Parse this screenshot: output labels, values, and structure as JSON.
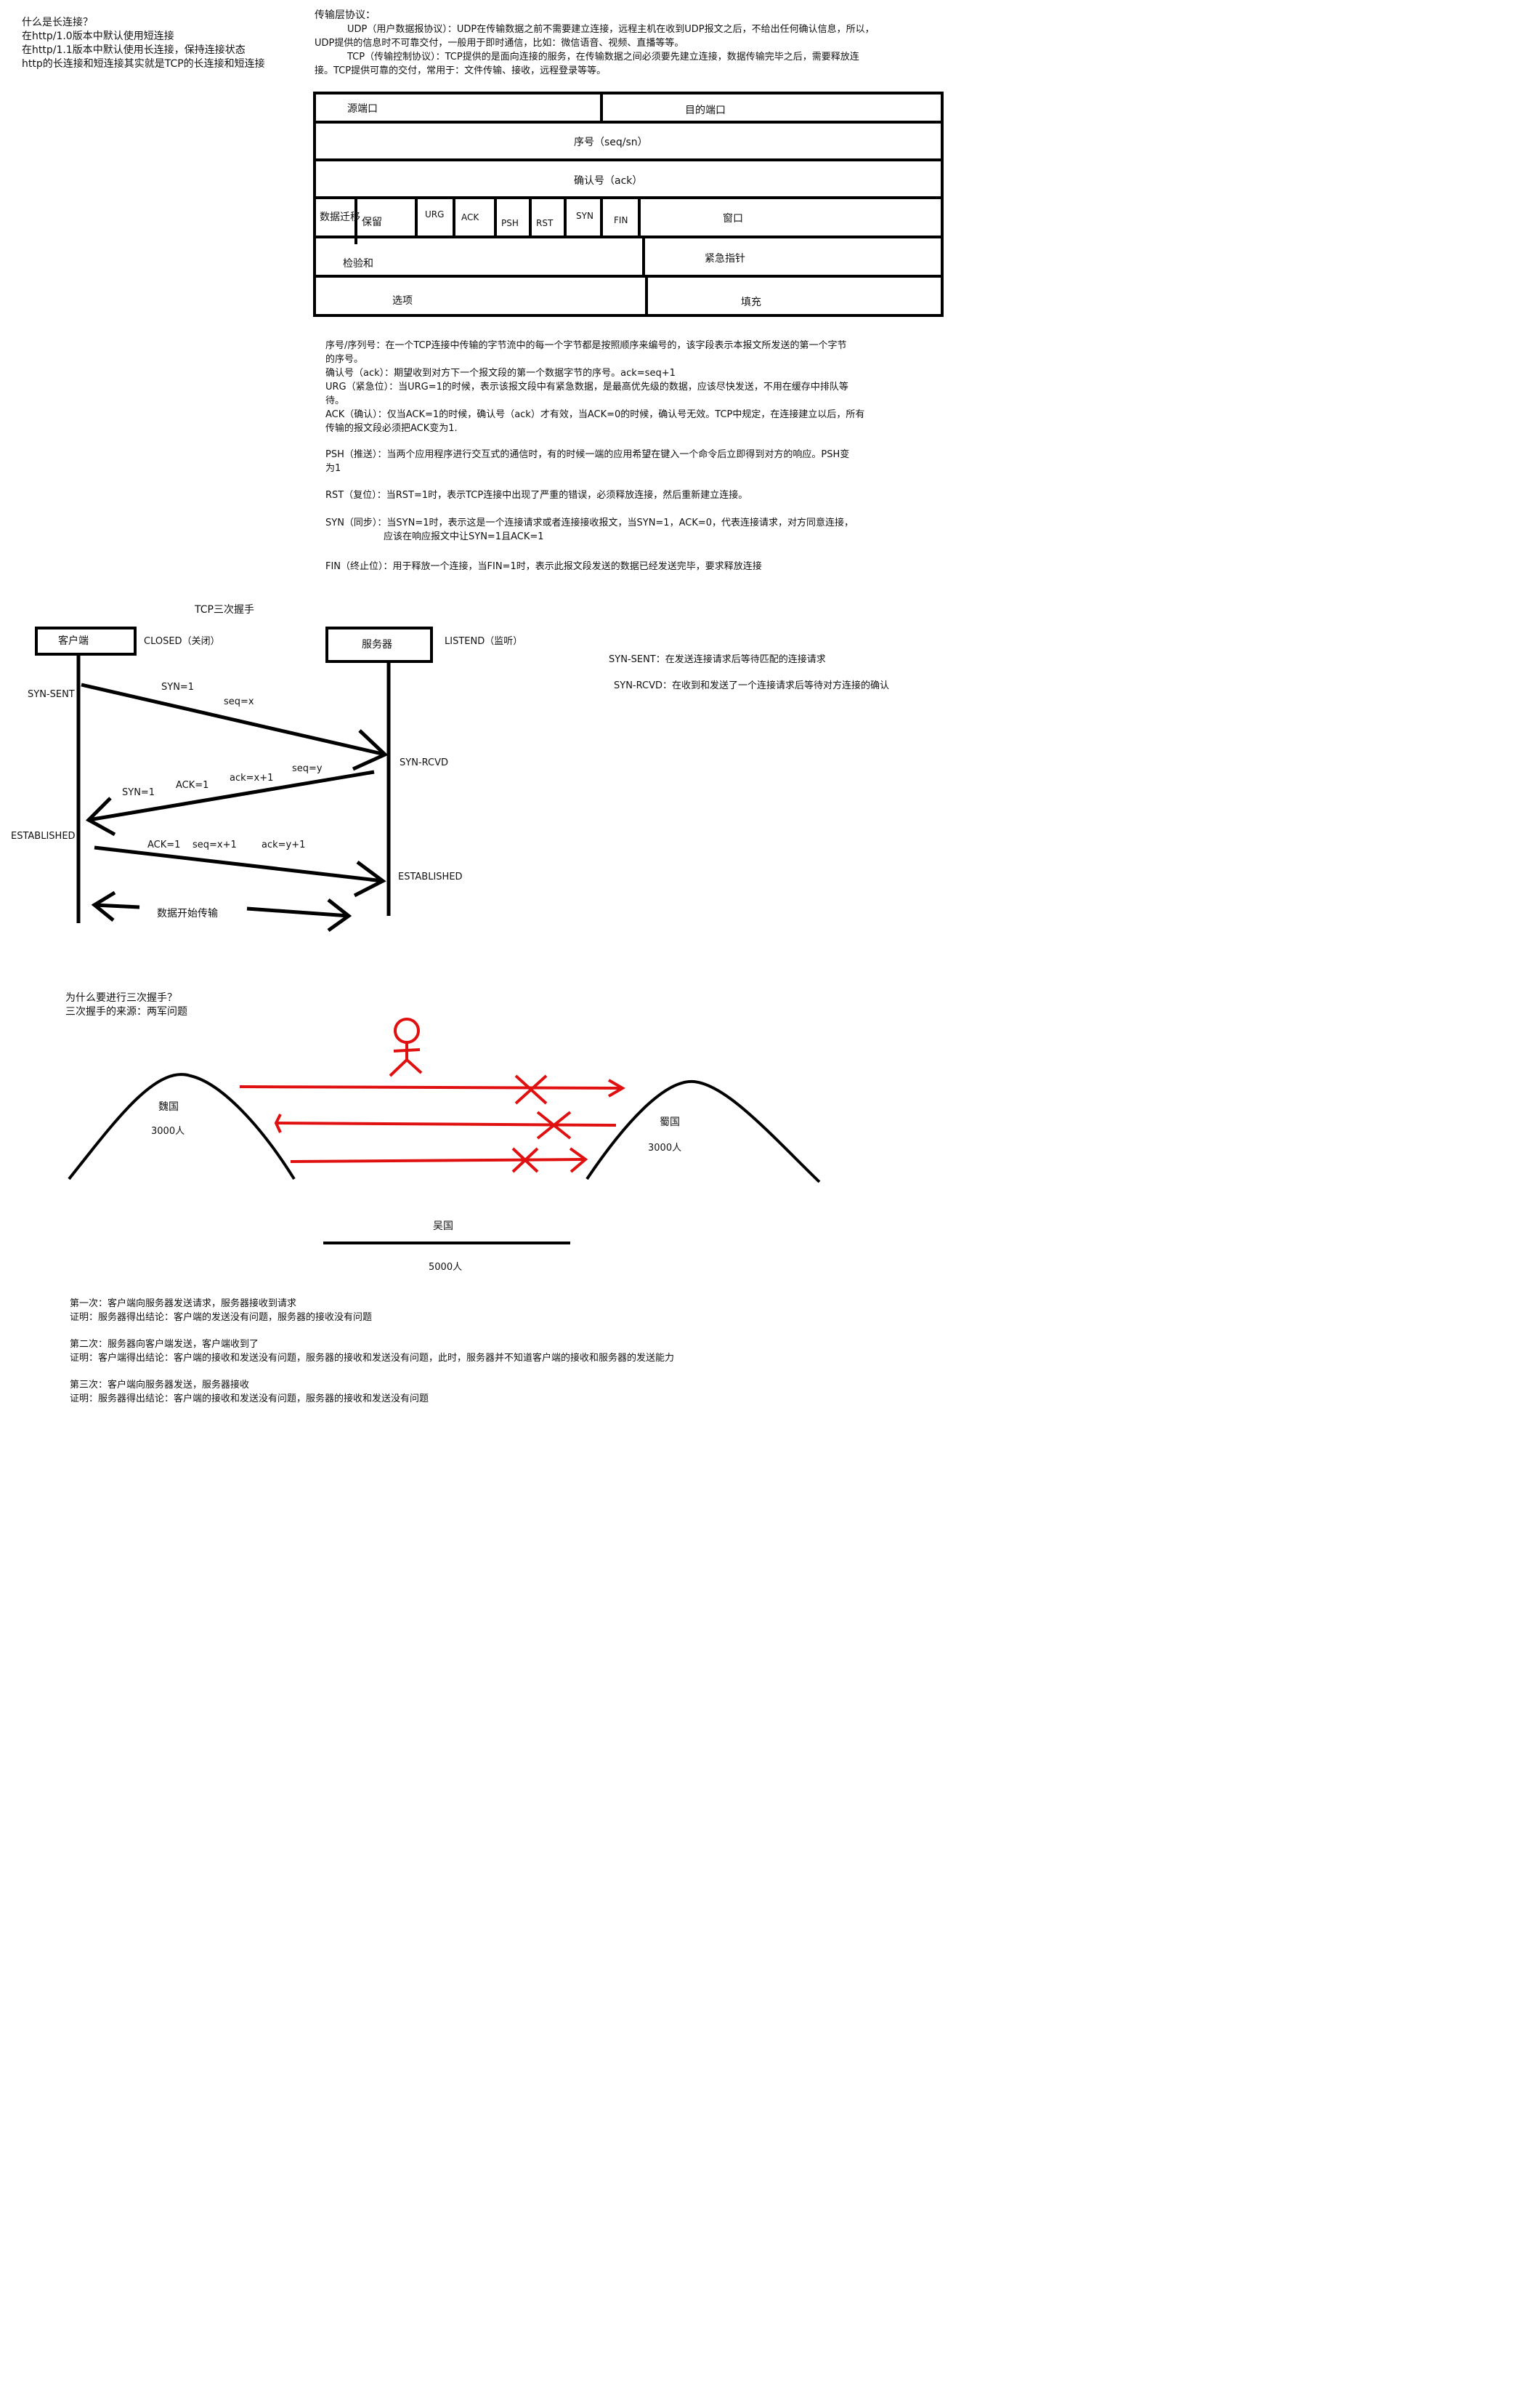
{
  "long_conn": {
    "q": "什么是长连接？",
    "l1": "在http/1.0版本中默认使用短连接",
    "l2": "在http/1.1版本中默认使用长连接，保持连接状态",
    "l3": "http的长连接和短连接其实就是TCP的长连接和短连接"
  },
  "transport": {
    "title": "传输层协议：",
    "udp1": "UDP（用户数据报协议）：UDP在传输数据之前不需要建立连接，远程主机在收到UDP报文之后，不给出任何确认信息，所以，",
    "udp2": "UDP提供的信息时不可靠交付，一般用于即时通信，比如：微信语音、视频、直播等等。",
    "tcp1": "TCP（传输控制协议）：TCP提供的是面向连接的服务，在传输数据之间必须要先建立连接，数据传输完毕之后，需要释放连",
    "tcp2": "接。TCP提供可靠的交付，常用于：文件传输、接收，远程登录等等。"
  },
  "header": {
    "src_port": "源端口",
    "dst_port": "目的端口",
    "seq": "序号（seq/sn）",
    "ack": "确认号（ack）",
    "offset": "数据迁移",
    "reserved": "保留",
    "urg": "URG",
    "ackf": "ACK",
    "psh": "PSH",
    "rst": "RST",
    "syn": "SYN",
    "fin": "FIN",
    "window": "窗口",
    "checksum": "检验和",
    "urgent": "紧急指针",
    "options": "选项",
    "padding": "填充"
  },
  "fields": {
    "seq1": "序号/序列号：在一个TCP连接中传输的字节流中的每一个字节都是按照顺序来编号的，该字段表示本报文所发送的第一个字节",
    "seq2": "的序号。",
    "ack": "确认号（ack）：期望收到对方下一个报文段的第一个数据字节的序号。ack=seq+1",
    "urg1": "URG（紧急位）：当URG=1的时候，表示该报文段中有紧急数据，是最高优先级的数据，应该尽快发送，不用在缓存中排队等",
    "urg2": "待。",
    "ackf1": "ACK（确认）：仅当ACK=1的时候，确认号（ack）才有效，当ACK=0的时候，确认号无效。TCP中规定，在连接建立以后，所有",
    "ackf2": "传输的报文段必须把ACK变为1.",
    "psh1": "PSH（推送）：当两个应用程序进行交互式的通信时，有的时候一端的应用希望在键入一个命令后立即得到对方的响应。PSH变",
    "psh2": "为1",
    "rst": "RST（复位）：当RST=1时，表示TCP连接中出现了严重的错误，必须释放连接，然后重新建立连接。",
    "syn1": "SYN（同步）：当SYN=1时，表示这是一个连接请求或者连接接收报文，当SYN=1，ACK=0，代表连接请求，对方同意连接，",
    "syn2": "应该在响应报文中让SYN=1且ACK=1",
    "fin": "FIN（终止位）：用于释放一个连接，当FIN=1时，表示此报文段发送的数据已经发送完毕，要求释放连接"
  },
  "handshake": {
    "title": "TCP三次握手",
    "client": "客户端",
    "server": "服务器",
    "closed": "CLOSED（关闭）",
    "listen": "LISTEND（监听）",
    "syn_sent": "SYN-SENT",
    "syn1": "SYN=1",
    "seqx": "seq=x",
    "syn_rcvd": "SYN-RCVD",
    "seqy": "seq=y",
    "ackx1": "ack=x+1",
    "ack1a": "ACK=1",
    "syn1b": "SYN=1",
    "established_c": "ESTABLISHED",
    "ack1b": "ACK=1",
    "seqx1": "seq=x+1",
    "acky1": "ack=y+1",
    "established_s": "ESTABLISHED",
    "data": "数据开始传输",
    "def_sent": "SYN-SENT：在发送连接请求后等待匹配的连接请求",
    "def_rcvd": "SYN-RCVD：在收到和发送了一个连接请求后等待对方连接的确认"
  },
  "why": {
    "q": "为什么要进行三次握手？",
    "origin": "三次握手的来源：两军问题",
    "wei": "魏国",
    "wei_n": "3000人",
    "shu": "蜀国",
    "shu_n": "3000人",
    "wu": "吴国",
    "wu_n": "5000人"
  },
  "proof": {
    "s1": "第一次：客户端向服务器发送请求，服务器接收到请求",
    "p1": "证明：服务器得出结论：客户端的发送没有问题，服务器的接收没有问题",
    "s2": "第二次：服务器向客户端发送，客户端收到了",
    "p2": "证明：客户端得出结论：客户端的接收和发送没有问题，服务器的接收和发送没有问题，此时，服务器并不知道客户端的接收和服务器的发送能力",
    "s3": "第三次：客户端向服务器发送，服务器接收",
    "p3": "证明：服务器得出结论：客户端的接收和发送没有问题，服务器的接收和发送没有问题"
  }
}
